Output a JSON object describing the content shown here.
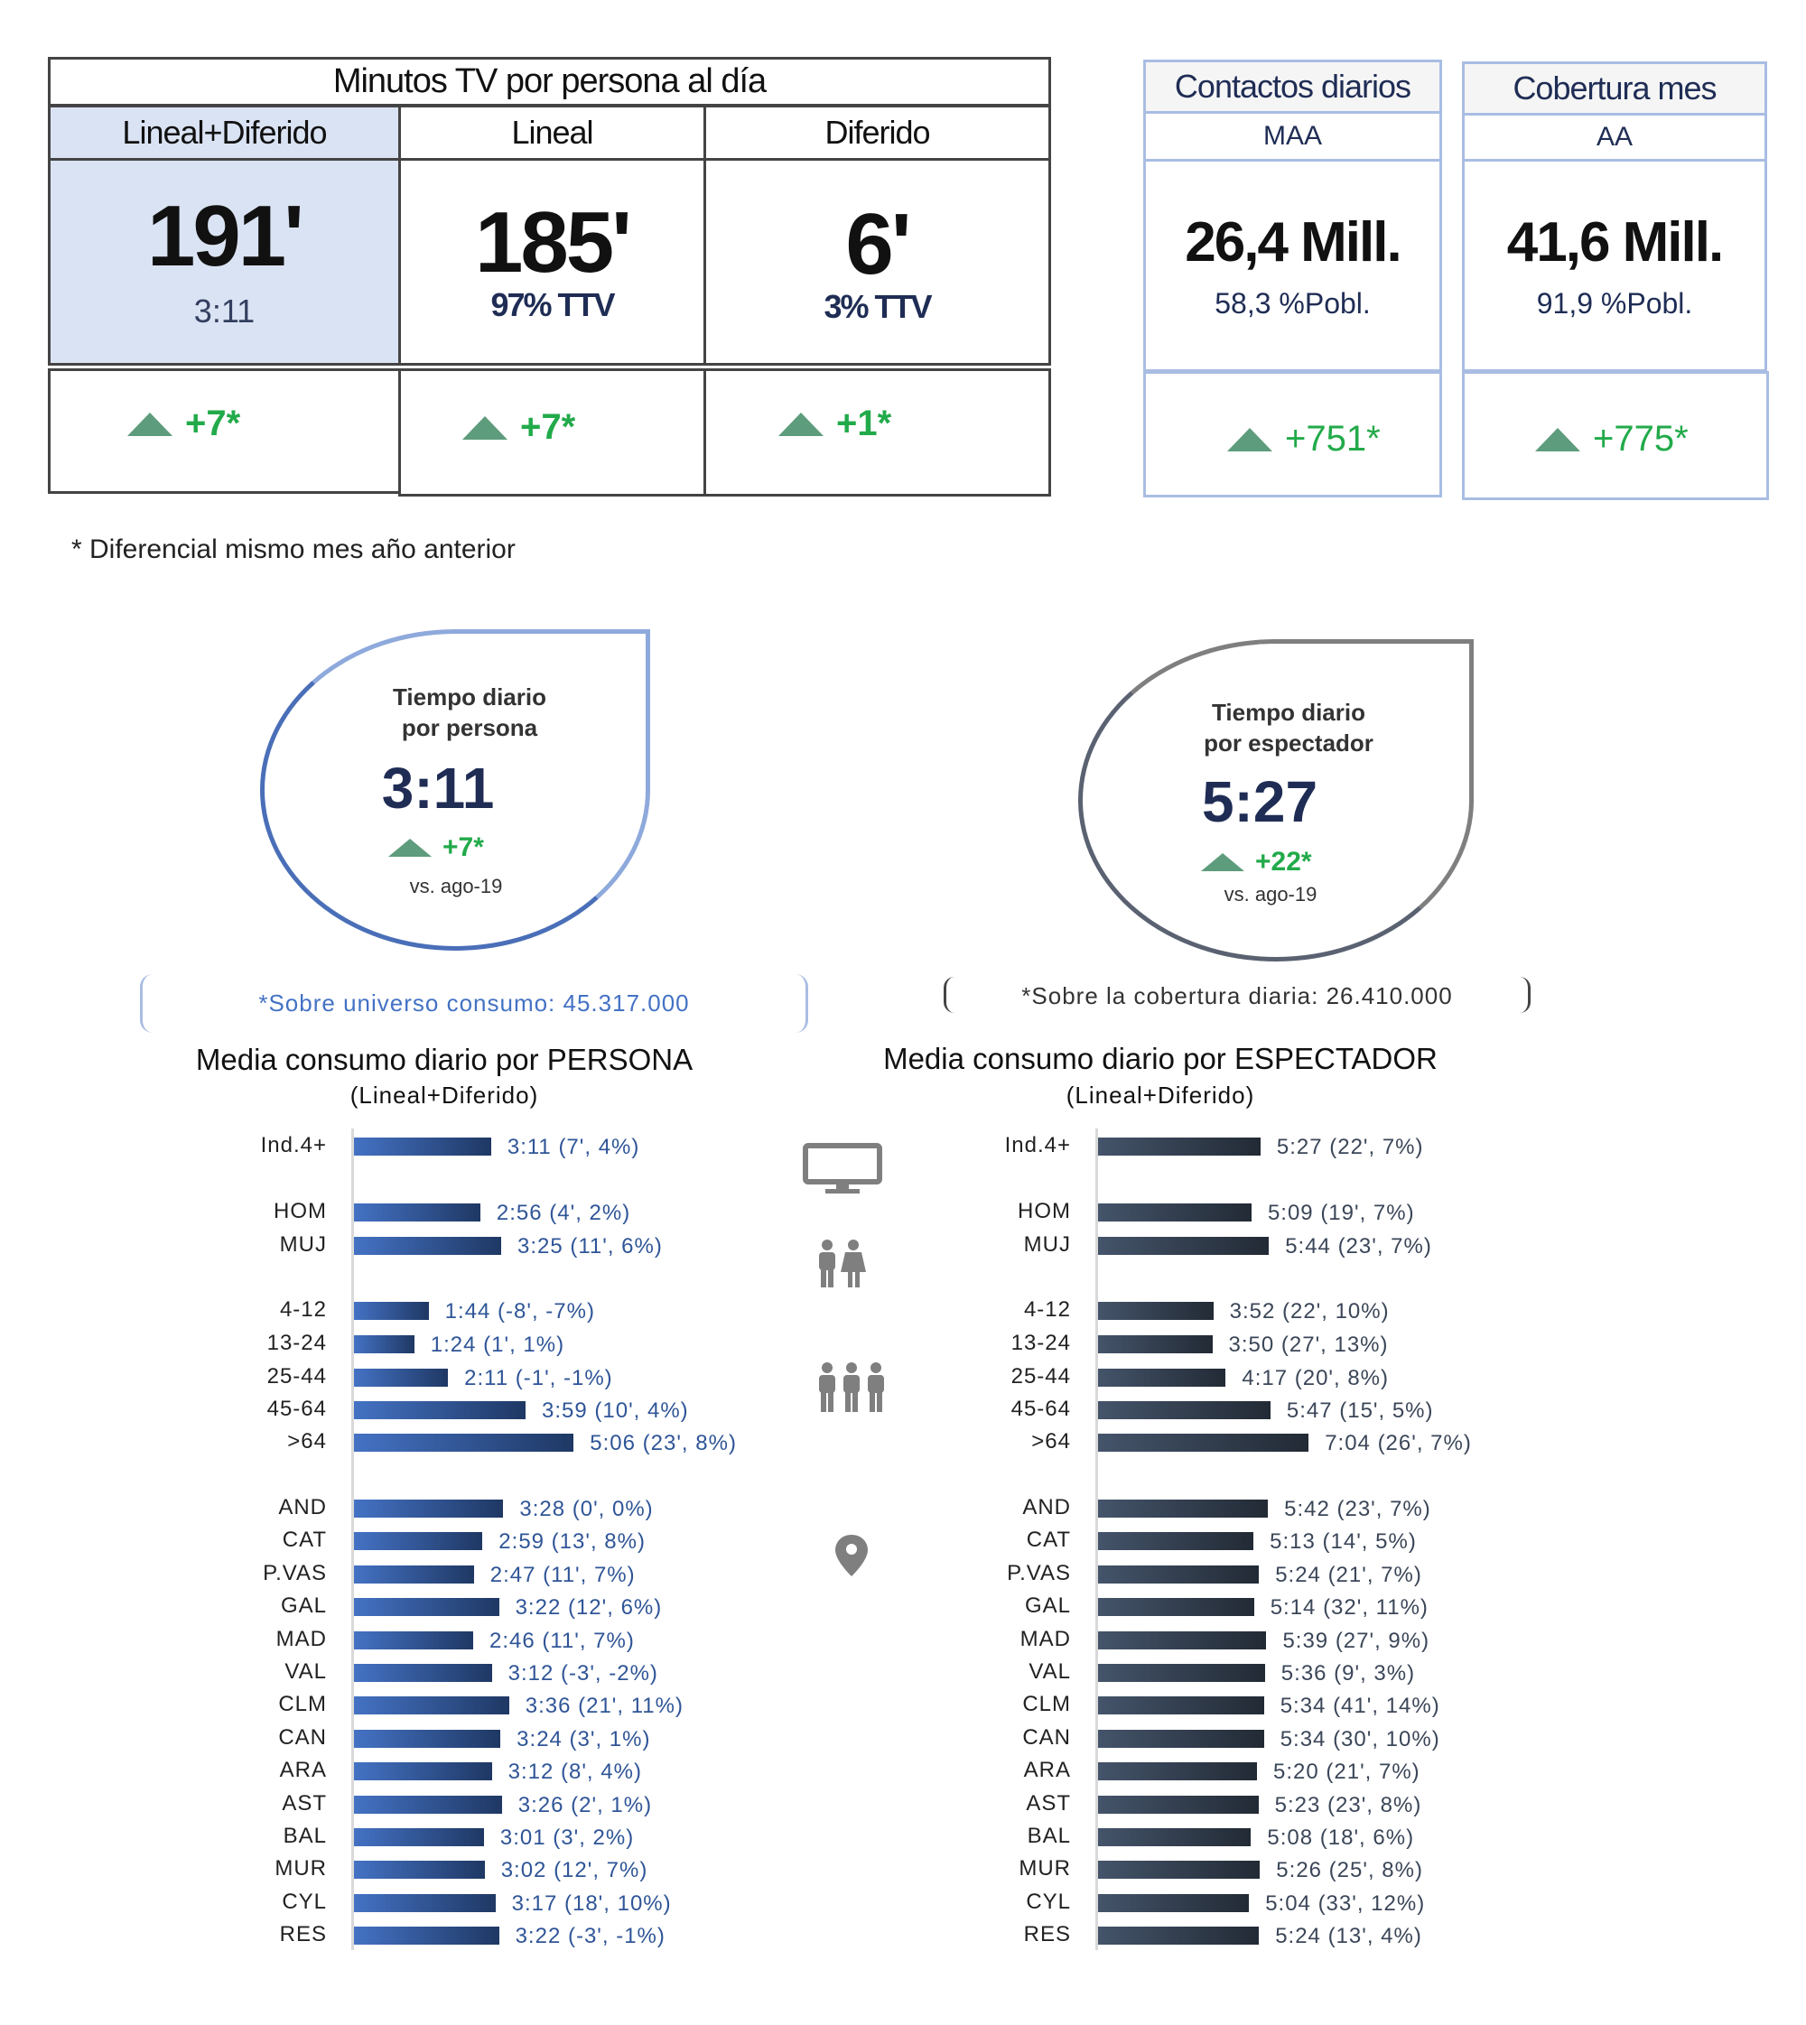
{
  "summary_table": {
    "title": "Minutos TV por persona al día",
    "columns": [
      {
        "header": "Lineal+Diferido",
        "value": "191'",
        "sub": "3:11",
        "delta": "+7*"
      },
      {
        "header": "Lineal",
        "value": "185'",
        "sub": "97% TTV",
        "delta": "+7*"
      },
      {
        "header": "Diferido",
        "value": "6'",
        "sub": "3% TTV",
        "delta": "+1*"
      }
    ]
  },
  "contacts": {
    "title": "Contactos diarios",
    "sub": "MAA",
    "value": "26,4 Mill.",
    "pct": "58,3 %Pobl.",
    "delta": "+751*"
  },
  "coverage": {
    "title": "Cobertura mes",
    "sub": "AA",
    "value": "41,6 Mill.",
    "pct": "91,9 %Pobl.",
    "delta": "+775*"
  },
  "footnote": "* Diferencial mismo mes año anterior",
  "drop_person": {
    "line1": "Tiempo diario",
    "line2": "por persona",
    "value": "3:11",
    "delta": "+7*",
    "vs": "vs. ago-19",
    "note": "*Sobre universo consumo: 45.317.000"
  },
  "drop_viewer": {
    "line1": "Tiempo diario",
    "line2": "por espectador",
    "value": "5:27",
    "delta": "+22*",
    "vs": "vs. ago-19",
    "note": "*Sobre la cobertura diaria: 26.410.000"
  },
  "colors": {
    "accent_blue": "#4472c4",
    "dark_blue": "#1f3864",
    "slate": "#333f50",
    "green": "#22aa4a"
  },
  "chart_data": [
    {
      "type": "bar",
      "title": "Media consumo diario por PERSONA",
      "subtitle": "(Lineal+Diferido)",
      "unit": "minutes",
      "categories": [
        "Ind.4+",
        "HOM",
        "MUJ",
        "4-12",
        "13-24",
        "25-44",
        "45-64",
        ">64",
        "AND",
        "CAT",
        "P.VAS",
        "GAL",
        "MAD",
        "VAL",
        "CLM",
        "CAN",
        "ARA",
        "AST",
        "BAL",
        "MUR",
        "CYL",
        "RES"
      ],
      "labels": [
        "3:11 (7', 4%)",
        "2:56 (4', 2%)",
        "3:25 (11', 6%)",
        "1:44 (-8', -7%)",
        "1:24 (1', 1%)",
        "2:11 (-1', -1%)",
        "3:59 (10', 4%)",
        "5:06 (23', 8%)",
        "3:28 (0', 0%)",
        "2:59 (13', 8%)",
        "2:47 (11', 7%)",
        "3:22 (12', 6%)",
        "2:46 (11', 7%)",
        "3:12 (-3', -2%)",
        "3:36 (21', 11%)",
        "3:24 (3', 1%)",
        "3:12 (8', 4%)",
        "3:26 (2', 1%)",
        "3:01 (3', 2%)",
        "3:02 (12', 7%)",
        "3:17 (18', 10%)",
        "3:22 (-3', -1%)"
      ],
      "values": [
        191,
        176,
        205,
        104,
        84,
        131,
        239,
        306,
        208,
        179,
        167,
        202,
        166,
        192,
        216,
        204,
        192,
        206,
        181,
        182,
        197,
        202
      ]
    },
    {
      "type": "bar",
      "title": "Media consumo diario por ESPECTADOR",
      "subtitle": "(Lineal+Diferido)",
      "unit": "minutes",
      "categories": [
        "Ind.4+",
        "HOM",
        "MUJ",
        "4-12",
        "13-24",
        "25-44",
        "45-64",
        ">64",
        "AND",
        "CAT",
        "P.VAS",
        "GAL",
        "MAD",
        "VAL",
        "CLM",
        "CAN",
        "ARA",
        "AST",
        "BAL",
        "MUR",
        "CYL",
        "RES"
      ],
      "labels": [
        "5:27 (22', 7%)",
        "5:09 (19', 7%)",
        "5:44 (23', 7%)",
        "3:52 (22', 10%)",
        "3:50 (27', 13%)",
        "4:17 (20', 8%)",
        "5:47 (15', 5%)",
        "7:04 (26', 7%)",
        "5:42 (23', 7%)",
        "5:13 (14', 5%)",
        "5:24 (21', 7%)",
        "5:14 (32', 11%)",
        "5:39 (27', 9%)",
        "5:36 (9', 3%)",
        "5:34 (41', 14%)",
        "5:34 (30', 10%)",
        "5:20 (21', 7%)",
        "5:23 (23', 8%)",
        "5:08 (18', 6%)",
        "5:26 (25', 8%)",
        "5:04 (33', 12%)",
        "5:24 (13', 4%)"
      ],
      "values": [
        327,
        309,
        344,
        232,
        230,
        257,
        347,
        424,
        342,
        313,
        324,
        314,
        339,
        336,
        334,
        334,
        320,
        323,
        308,
        326,
        304,
        324
      ]
    }
  ]
}
